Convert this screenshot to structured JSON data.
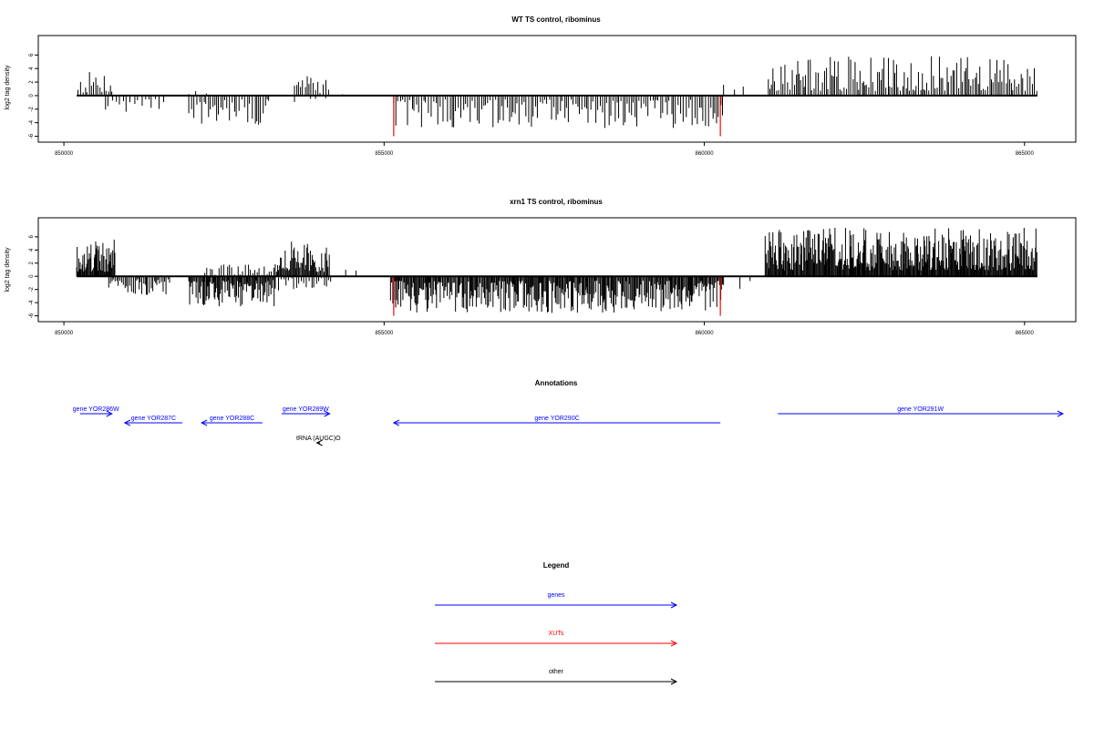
{
  "colors": {
    "gene": "#0000ff",
    "xut": "#ff0000",
    "other": "#000000",
    "trace": "#000000"
  },
  "chart_data": [
    {
      "type": "bar",
      "title": "WT TS control, ribominus",
      "ylabel": "log2 tag density",
      "xlim": [
        849600,
        865800
      ],
      "ylim": [
        -6.2,
        8.2
      ],
      "xticks": [
        850000,
        855000,
        860000,
        865000
      ],
      "yticks": [
        -6,
        -4,
        -2,
        0,
        2,
        4,
        6
      ],
      "xticklabels": [
        "850000",
        "855000",
        "860000",
        "865000"
      ],
      "yticklabels": [
        "-6",
        "-4",
        "-2",
        "0",
        "2",
        "4",
        "6"
      ],
      "baseline": [
        850200,
        865200
      ],
      "grid": false,
      "highlight": [
        {
          "x": 855150,
          "value": -6.0
        },
        {
          "x": 860250,
          "value": -6.0
        }
      ],
      "segments": [
        {
          "from": 850220,
          "to": 850750,
          "sign": 1,
          "max": 3.6,
          "step": 30
        },
        {
          "from": 850650,
          "to": 851600,
          "sign": -1,
          "max": 2.8,
          "step": 55
        },
        {
          "from": 851950,
          "to": 853200,
          "sign": -1,
          "max": 4.4,
          "step": 35
        },
        {
          "from": 851950,
          "to": 852300,
          "sign": 1,
          "max": 1.5,
          "step": 120
        },
        {
          "from": 853600,
          "to": 854150,
          "sign": 1,
          "max": 3.2,
          "step": 40
        },
        {
          "from": 853600,
          "to": 854100,
          "sign": -1,
          "max": 1.0,
          "step": 120
        },
        {
          "from": 854350,
          "to": 854400,
          "sign": 1,
          "max": 1.6,
          "step": 60
        },
        {
          "from": 855150,
          "to": 860300,
          "sign": -1,
          "max": 4.8,
          "step": 35
        },
        {
          "from": 860300,
          "to": 860650,
          "sign": 1,
          "max": 2.4,
          "step": 150
        },
        {
          "from": 861000,
          "to": 865200,
          "sign": 1,
          "max": 5.8,
          "step": 30
        }
      ]
    },
    {
      "type": "bar",
      "title": "xrn1 TS control, ribominus",
      "ylabel": "log2 tag density",
      "xlim": [
        849600,
        865800
      ],
      "ylim": [
        -6.2,
        8.2
      ],
      "xticks": [
        850000,
        855000,
        860000,
        865000
      ],
      "yticks": [
        -6,
        -4,
        -2,
        0,
        2,
        4,
        6
      ],
      "xticklabels": [
        "850000",
        "855000",
        "860000",
        "865000"
      ],
      "yticklabels": [
        "-6",
        "-4",
        "-2",
        "0",
        "2",
        "4",
        "6"
      ],
      "baseline": [
        850200,
        865200
      ],
      "grid": false,
      "highlight": [
        {
          "x": 855150,
          "value": -6.0
        },
        {
          "x": 860250,
          "value": -6.0
        }
      ],
      "segments": [
        {
          "from": 850200,
          "to": 850800,
          "sign": 1,
          "max": 5.6,
          "step": 12
        },
        {
          "from": 850700,
          "to": 851650,
          "sign": -1,
          "max": 3.0,
          "step": 25
        },
        {
          "from": 851950,
          "to": 853300,
          "sign": -1,
          "max": 4.6,
          "step": 15
        },
        {
          "from": 852200,
          "to": 853300,
          "sign": 1,
          "max": 1.8,
          "step": 45
        },
        {
          "from": 853300,
          "to": 854150,
          "sign": 1,
          "max": 5.6,
          "step": 15
        },
        {
          "from": 853300,
          "to": 854200,
          "sign": -1,
          "max": 2.4,
          "step": 40
        },
        {
          "from": 854400,
          "to": 854700,
          "sign": 1,
          "max": 1.8,
          "step": 150
        },
        {
          "from": 855100,
          "to": 860300,
          "sign": -1,
          "max": 5.6,
          "step": 15
        },
        {
          "from": 860300,
          "to": 860900,
          "sign": -1,
          "max": 2.0,
          "step": 200
        },
        {
          "from": 860950,
          "to": 865200,
          "sign": 1,
          "max": 7.4,
          "step": 12
        }
      ]
    }
  ],
  "annotations": {
    "title": "Annotations",
    "features": [
      {
        "label": "gene YOR286W",
        "start": 850250,
        "end": 850750,
        "row": 0,
        "strand": "+",
        "kind": "gene"
      },
      {
        "label": "gene YOR287C",
        "start": 850950,
        "end": 851850,
        "row": 1,
        "strand": "-",
        "kind": "gene"
      },
      {
        "label": "gene YOR288C",
        "start": 852150,
        "end": 853100,
        "row": 1,
        "strand": "-",
        "kind": "gene"
      },
      {
        "label": "gene YOR289W",
        "start": 853400,
        "end": 854150,
        "row": 0,
        "strand": "+",
        "kind": "gene"
      },
      {
        "label": "tRNA (AUGC)O",
        "start": 853950,
        "end": 854000,
        "row": 3,
        "strand": "-",
        "kind": "other"
      },
      {
        "label": "gene YOR290C",
        "start": 855150,
        "end": 860250,
        "row": 1,
        "strand": "-",
        "kind": "gene"
      },
      {
        "label": "gene YOR291W",
        "start": 861150,
        "end": 865600,
        "row": 0,
        "strand": "+",
        "kind": "gene"
      }
    ]
  },
  "legend": {
    "title": "Legend",
    "items": [
      {
        "label": "genes",
        "kind": "gene"
      },
      {
        "label": "XUTs",
        "kind": "xut"
      },
      {
        "label": "other",
        "kind": "other"
      }
    ]
  }
}
